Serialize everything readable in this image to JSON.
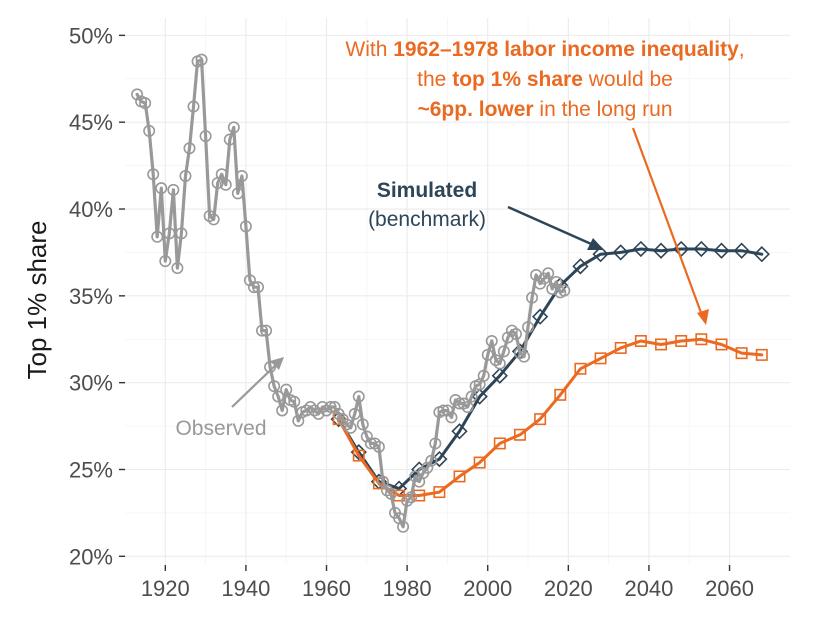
{
  "chart_data": {
    "type": "line",
    "title": "",
    "xlabel": "",
    "ylabel": "Top 1% share",
    "xlim": [
      1910,
      2075
    ],
    "ylim": [
      19.5,
      51
    ],
    "x_ticks": [
      1920,
      1940,
      1960,
      1980,
      2000,
      2020,
      2040,
      2060
    ],
    "y_ticks": [
      20,
      25,
      30,
      35,
      40,
      45,
      50
    ],
    "y_tick_suffix": "%",
    "grid": true,
    "colors": {
      "observed": "#999999",
      "simulated": "#2e4557",
      "counterfactual": "#ea6a22"
    },
    "series": [
      {
        "name": "Observed",
        "marker": "circle",
        "x": [
          1913,
          1914,
          1915,
          1916,
          1917,
          1918,
          1919,
          1920,
          1921,
          1922,
          1923,
          1924,
          1925,
          1926,
          1927,
          1928,
          1929,
          1930,
          1931,
          1932,
          1933,
          1934,
          1935,
          1936,
          1937,
          1938,
          1939,
          1940,
          1941,
          1942,
          1943,
          1944,
          1945,
          1946,
          1947,
          1948,
          1949,
          1950,
          1951,
          1952,
          1953,
          1954,
          1955,
          1956,
          1957,
          1958,
          1959,
          1960,
          1961,
          1962,
          1963,
          1964,
          1965,
          1966,
          1967,
          1968,
          1969,
          1970,
          1971,
          1972,
          1973,
          1974,
          1975,
          1976,
          1977,
          1978,
          1979,
          1980,
          1981,
          1982,
          1983,
          1984,
          1985,
          1986,
          1987,
          1988,
          1989,
          1990,
          1991,
          1992,
          1993,
          1994,
          1995,
          1996,
          1997,
          1998,
          1999,
          2000,
          2001,
          2002,
          2003,
          2004,
          2005,
          2006,
          2007,
          2008,
          2009,
          2010,
          2011,
          2012,
          2013,
          2014,
          2015,
          2016,
          2017,
          2018,
          2019
        ],
        "y": [
          46.6,
          46.2,
          46.1,
          44.5,
          42.0,
          38.4,
          41.2,
          37.0,
          38.6,
          41.1,
          36.6,
          38.6,
          41.9,
          43.5,
          45.9,
          48.5,
          48.6,
          44.2,
          39.6,
          39.4,
          41.5,
          42.0,
          41.4,
          44.0,
          44.7,
          40.9,
          41.9,
          39.0,
          35.9,
          35.5,
          35.5,
          33.0,
          33.0,
          30.9,
          29.8,
          29.2,
          28.4,
          29.6,
          29.0,
          28.9,
          27.8,
          28.3,
          28.4,
          28.6,
          28.4,
          28.2,
          28.6,
          28.4,
          28.6,
          28.6,
          28.2,
          27.9,
          27.6,
          27.4,
          28.2,
          29.2,
          27.6,
          26.9,
          26.5,
          26.5,
          26.3,
          24.3,
          23.8,
          23.6,
          22.5,
          22.2,
          21.7,
          23.2,
          23.4,
          24.6,
          24.3,
          24.8,
          25.1,
          25.5,
          26.5,
          28.3,
          28.4,
          28.4,
          28.0,
          29.0,
          28.8,
          28.8,
          28.6,
          29.2,
          29.8,
          29.9,
          30.4,
          31.6,
          32.4,
          31.3,
          31.1,
          31.8,
          32.6,
          33.0,
          32.8,
          31.7,
          31.5,
          33.2,
          34.9,
          36.2,
          35.7,
          36.0,
          36.3,
          35.4,
          35.8,
          35.2,
          35.3
        ]
      },
      {
        "name": "Simulated (benchmark)",
        "marker": "diamond",
        "x": [
          1963,
          1968,
          1973,
          1978,
          1983,
          1988,
          1993,
          1998,
          2003,
          2008,
          2013,
          2018,
          2023,
          2028,
          2033,
          2038,
          2043,
          2048,
          2053,
          2058,
          2063,
          2068
        ],
        "y": [
          27.9,
          26.0,
          24.3,
          23.9,
          25.0,
          25.6,
          27.2,
          29.2,
          30.4,
          31.8,
          33.8,
          35.6,
          36.7,
          37.4,
          37.5,
          37.7,
          37.6,
          37.7,
          37.7,
          37.6,
          37.6,
          37.4
        ]
      },
      {
        "name": "With 1962-1978 labor income inequality",
        "marker": "square",
        "x": [
          1963,
          1968,
          1973,
          1978,
          1983,
          1988,
          1993,
          1998,
          2003,
          2008,
          2013,
          2018,
          2023,
          2028,
          2033,
          2038,
          2043,
          2048,
          2053,
          2058,
          2063,
          2068
        ],
        "y": [
          27.9,
          25.8,
          24.2,
          23.5,
          23.5,
          23.7,
          24.6,
          25.4,
          26.5,
          27.0,
          27.9,
          29.3,
          30.8,
          31.4,
          32.0,
          32.4,
          32.2,
          32.4,
          32.5,
          32.2,
          31.7,
          31.6
        ]
      }
    ],
    "annotations": {
      "observed_label": "Observed",
      "simulated_title": "Simulated",
      "simulated_subtitle": "(benchmark)",
      "counterfactual_line1": [
        "With ",
        "1962–1978 labor income inequality",
        ","
      ],
      "counterfactual_line2": [
        "the ",
        "top 1% share",
        " would be"
      ],
      "counterfactual_line3": [
        "~6pp. lower",
        " in the long run"
      ]
    }
  }
}
